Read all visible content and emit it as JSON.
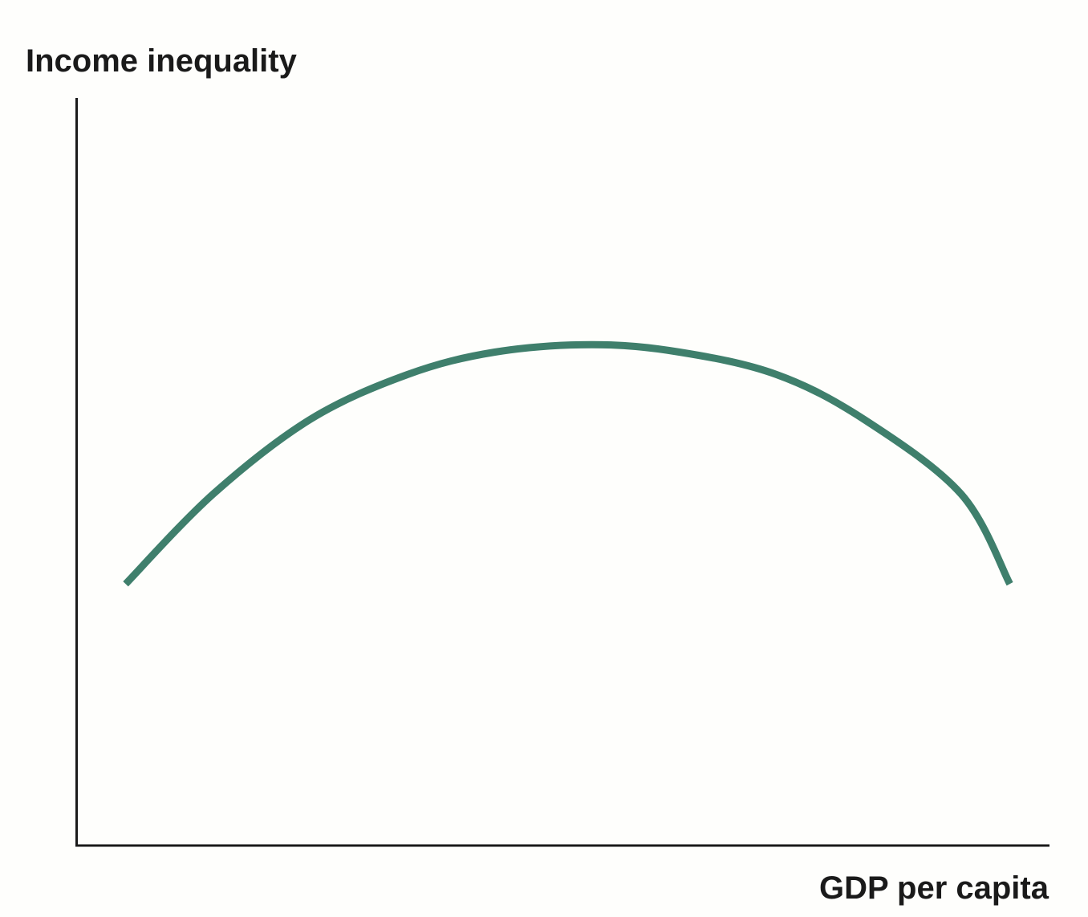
{
  "chart_data": {
    "type": "line",
    "title": "",
    "ylabel": "Income inequality",
    "xlabel": "GDP per capita",
    "xlim": [
      0,
      1
    ],
    "ylim": [
      0,
      1
    ],
    "grid": false,
    "legend": "none",
    "series": [
      {
        "color": "#3f7f6c",
        "x": [
          0.05,
          0.14,
          0.24,
          0.34,
          0.43,
          0.53,
          0.62,
          0.72,
          0.81,
          0.91,
          0.96
        ],
        "y": [
          0.35,
          0.47,
          0.57,
          0.63,
          0.66,
          0.67,
          0.66,
          0.63,
          0.57,
          0.47,
          0.35
        ]
      }
    ]
  },
  "colors": {
    "axis": "#1a1a1a",
    "curve": "#3f7f6c",
    "background": "#fefefc"
  }
}
